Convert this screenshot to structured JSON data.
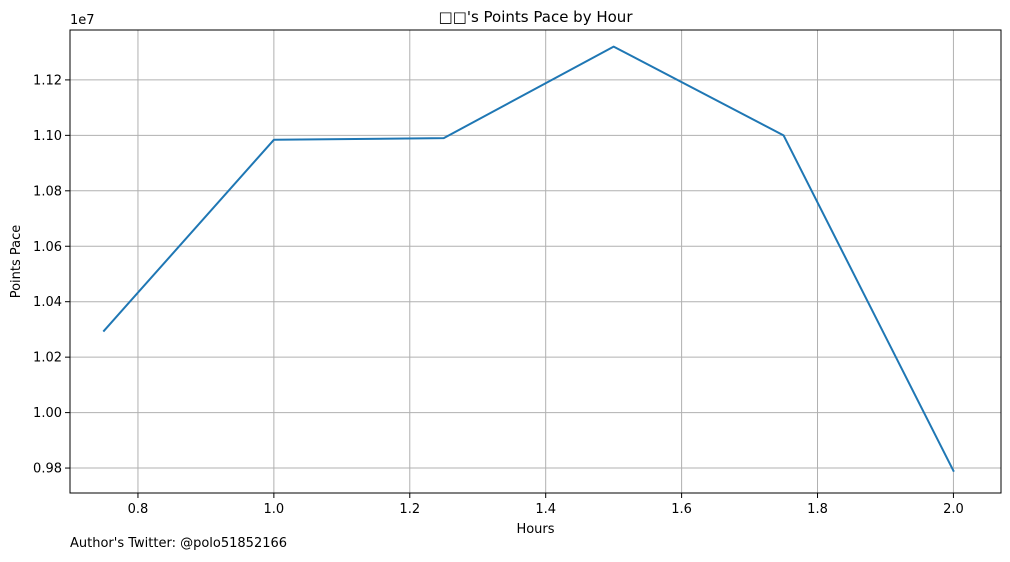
{
  "chart_data": {
    "type": "line",
    "title": "□□'s Points Pace by Hour",
    "xlabel": "Hours",
    "ylabel": "Points Pace",
    "y_offset_label": "1e7",
    "xlim": [
      0.7,
      2.07
    ],
    "ylim": [
      9.71,
      11.38
    ],
    "x_ticks": [
      0.8,
      1.0,
      1.2,
      1.4,
      1.6,
      1.8,
      2.0
    ],
    "x_tick_labels": [
      "0.8",
      "1.0",
      "1.2",
      "1.4",
      "1.6",
      "1.8",
      "2.0"
    ],
    "y_ticks": [
      9.8,
      10.0,
      10.2,
      10.4,
      10.6,
      10.8,
      11.0,
      11.2
    ],
    "y_tick_labels": [
      "0.98",
      "1.00",
      "1.02",
      "1.04",
      "1.06",
      "1.08",
      "1.10",
      "1.12"
    ],
    "grid": true,
    "series": [
      {
        "color": "#1f77b4",
        "x": [
          0.75,
          1.0,
          1.25,
          1.5,
          1.75,
          2.0
        ],
        "y": [
          10.295,
          10.984,
          10.99,
          11.32,
          11.0,
          9.79
        ]
      }
    ]
  },
  "footer": {
    "credit": "Author's Twitter: @polo51852166"
  }
}
